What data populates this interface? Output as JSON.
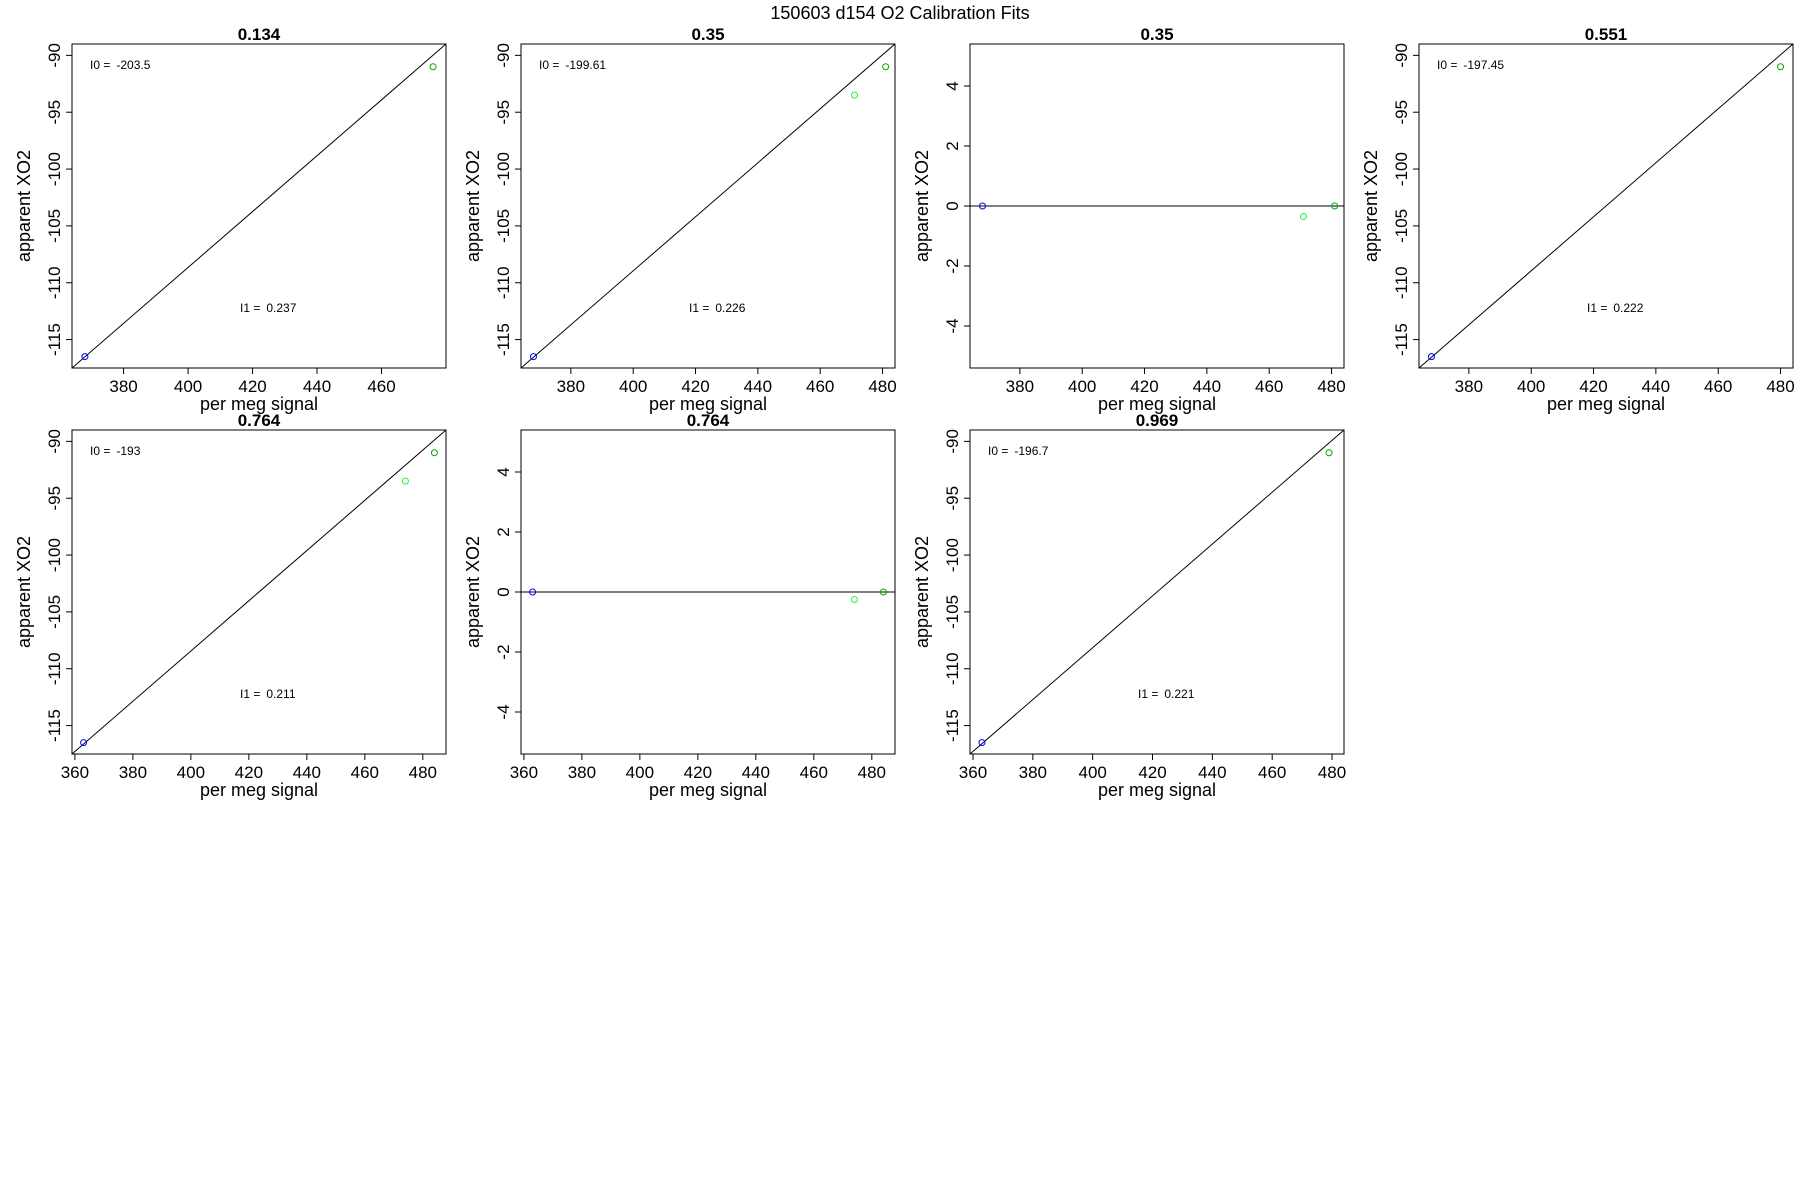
{
  "figure": {
    "title": "150603   d154   O2 Calibration Fits"
  },
  "chart_data": [
    {
      "type": "scatter",
      "title": "0.134",
      "xlabel": "per meg signal",
      "ylabel": "apparent XO2",
      "xlim": [
        364,
        480
      ],
      "ylim": [
        -117.5,
        -89
      ],
      "xticks": [
        380,
        400,
        420,
        440,
        460
      ],
      "yticks": [
        -90,
        -95,
        -100,
        -105,
        -110,
        -115
      ],
      "points": [
        {
          "x": 368,
          "y": -116.5,
          "color": "#0000ff"
        },
        {
          "x": 476,
          "y": -91,
          "color": "#00aa00"
        }
      ],
      "fit_line": [
        {
          "x": 364,
          "y": -117.5
        },
        {
          "x": 480,
          "y": -89
        }
      ],
      "annotations": [
        {
          "label": "I0 =",
          "value": "-203.5"
        },
        {
          "label": "I1 =",
          "value": "0.237"
        }
      ]
    },
    {
      "type": "scatter",
      "title": "0.35",
      "xlabel": "per meg signal",
      "ylabel": "apparent XO2",
      "xlim": [
        364,
        484
      ],
      "ylim": [
        -117.5,
        -89
      ],
      "xticks": [
        380,
        400,
        420,
        440,
        460,
        480
      ],
      "yticks": [
        -90,
        -95,
        -100,
        -105,
        -110,
        -115
      ],
      "points": [
        {
          "x": 368,
          "y": -116.5,
          "color": "#0000ff"
        },
        {
          "x": 471,
          "y": -93.5,
          "color": "#33ee33"
        },
        {
          "x": 481,
          "y": -91,
          "color": "#00aa00"
        }
      ],
      "fit_line": [
        {
          "x": 364,
          "y": -117.5
        },
        {
          "x": 484,
          "y": -89
        }
      ],
      "annotations": [
        {
          "label": "I0 =",
          "value": "-199.61"
        },
        {
          "label": "I1 =",
          "value": "0.226"
        }
      ]
    },
    {
      "type": "scatter",
      "title": "0.35",
      "xlabel": "per meg signal",
      "ylabel": "apparent XO2",
      "xlim": [
        364,
        484
      ],
      "ylim": [
        -5.4,
        5.4
      ],
      "xticks": [
        380,
        400,
        420,
        440,
        460,
        480
      ],
      "yticks": [
        4,
        2,
        0,
        -2,
        -4
      ],
      "points": [
        {
          "x": 368,
          "y": 0,
          "color": "#0000ff"
        },
        {
          "x": 471,
          "y": -0.35,
          "color": "#33ee33"
        },
        {
          "x": 481,
          "y": 0,
          "color": "#00aa00"
        }
      ],
      "hline": 0,
      "annotations": []
    },
    {
      "type": "scatter",
      "title": "0.551",
      "xlabel": "per meg signal",
      "ylabel": "apparent XO2",
      "xlim": [
        364,
        484
      ],
      "ylim": [
        -117.5,
        -89
      ],
      "xticks": [
        380,
        400,
        420,
        440,
        460,
        480
      ],
      "yticks": [
        -90,
        -95,
        -100,
        -105,
        -110,
        -115
      ],
      "points": [
        {
          "x": 368,
          "y": -116.5,
          "color": "#0000ff"
        },
        {
          "x": 480,
          "y": -91,
          "color": "#00aa00"
        }
      ],
      "fit_line": [
        {
          "x": 364,
          "y": -117.5
        },
        {
          "x": 484,
          "y": -89
        }
      ],
      "annotations": [
        {
          "label": "I0 =",
          "value": "-197.45"
        },
        {
          "label": "I1 =",
          "value": "0.222"
        }
      ]
    },
    {
      "type": "scatter",
      "title": "0.764",
      "xlabel": "per meg signal",
      "ylabel": "apparent XO2",
      "xlim": [
        359,
        488
      ],
      "ylim": [
        -117.5,
        -89
      ],
      "xticks": [
        360,
        380,
        400,
        420,
        440,
        460,
        480
      ],
      "yticks": [
        -90,
        -95,
        -100,
        -105,
        -110,
        -115
      ],
      "points": [
        {
          "x": 363,
          "y": -116.5,
          "color": "#0000ff"
        },
        {
          "x": 474,
          "y": -93.5,
          "color": "#33ee33"
        },
        {
          "x": 484,
          "y": -91,
          "color": "#00aa00"
        }
      ],
      "fit_line": [
        {
          "x": 359,
          "y": -117.5
        },
        {
          "x": 488,
          "y": -89
        }
      ],
      "annotations": [
        {
          "label": "I0 =",
          "value": "-193"
        },
        {
          "label": "I1 =",
          "value": "0.211"
        }
      ]
    },
    {
      "type": "scatter",
      "title": "0.764",
      "xlabel": "per meg signal",
      "ylabel": "apparent XO2",
      "xlim": [
        359,
        488
      ],
      "ylim": [
        -5.4,
        5.4
      ],
      "xticks": [
        360,
        380,
        400,
        420,
        440,
        460,
        480
      ],
      "yticks": [
        4,
        2,
        0,
        -2,
        -4
      ],
      "points": [
        {
          "x": 363,
          "y": 0,
          "color": "#0000ff"
        },
        {
          "x": 474,
          "y": -0.25,
          "color": "#33ee33"
        },
        {
          "x": 484,
          "y": 0,
          "color": "#00aa00"
        }
      ],
      "hline": 0,
      "annotations": []
    },
    {
      "type": "scatter",
      "title": "0.969",
      "xlabel": "per meg signal",
      "ylabel": "apparent XO2",
      "xlim": [
        359,
        484
      ],
      "ylim": [
        -117.5,
        -89
      ],
      "xticks": [
        360,
        380,
        400,
        420,
        440,
        460,
        480
      ],
      "yticks": [
        -90,
        -95,
        -100,
        -105,
        -110,
        -115
      ],
      "points": [
        {
          "x": 363,
          "y": -116.5,
          "color": "#0000ff"
        },
        {
          "x": 479,
          "y": -91,
          "color": "#00aa00"
        }
      ],
      "fit_line": [
        {
          "x": 359,
          "y": -117.5
        },
        {
          "x": 484,
          "y": -89
        }
      ],
      "annotations": [
        {
          "label": "I0 =",
          "value": "-196.7"
        },
        {
          "label": "I1 =",
          "value": "0.221"
        }
      ]
    }
  ]
}
